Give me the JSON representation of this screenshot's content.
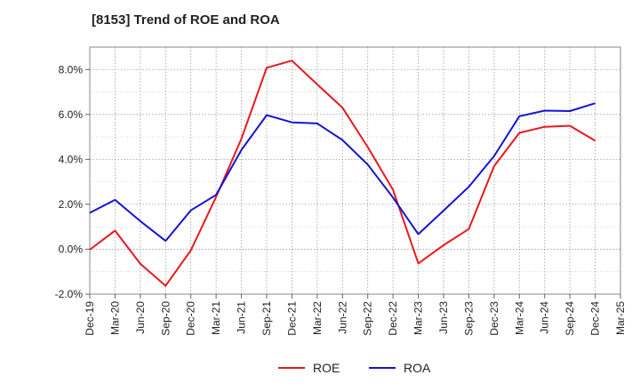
{
  "chart_data": {
    "type": "line",
    "title": "[8153]  Trend of ROE and ROA",
    "x": [
      "Dec-19",
      "Mar-20",
      "Jun-20",
      "Sep-20",
      "Dec-20",
      "Mar-21",
      "Jun-21",
      "Sep-21",
      "Dec-21",
      "Mar-22",
      "Jun-22",
      "Sep-22",
      "Dec-22",
      "Mar-23",
      "Jun-23",
      "Sep-23",
      "Dec-23",
      "Mar-24",
      "Jun-24",
      "Sep-24",
      "Dec-24",
      "Mar-25"
    ],
    "y_ticks": [
      "-2.0%",
      "0.0%",
      "2.0%",
      "4.0%",
      "6.0%",
      "8.0%"
    ],
    "y_tick_values": [
      -2,
      0,
      2,
      4,
      6,
      8
    ],
    "ylim": [
      -2,
      9
    ],
    "y_unit": "%",
    "grid": true,
    "legend_position": "bottom-center",
    "series": [
      {
        "name": "ROE",
        "color": "#e8191d",
        "values": [
          -0.02,
          0.83,
          -0.65,
          -1.63,
          -0.05,
          2.33,
          4.92,
          8.08,
          8.4,
          7.34,
          6.3,
          4.55,
          2.65,
          -0.63,
          0.18,
          0.9,
          3.7,
          5.18,
          5.45,
          5.5,
          4.83,
          null
        ]
      },
      {
        "name": "ROA",
        "color": "#1414d2",
        "values": [
          1.62,
          2.2,
          1.25,
          0.37,
          1.73,
          2.42,
          4.42,
          5.97,
          5.65,
          5.6,
          4.86,
          3.77,
          2.3,
          0.67,
          1.72,
          2.78,
          4.15,
          5.92,
          6.17,
          6.15,
          6.5,
          null
        ]
      }
    ]
  }
}
